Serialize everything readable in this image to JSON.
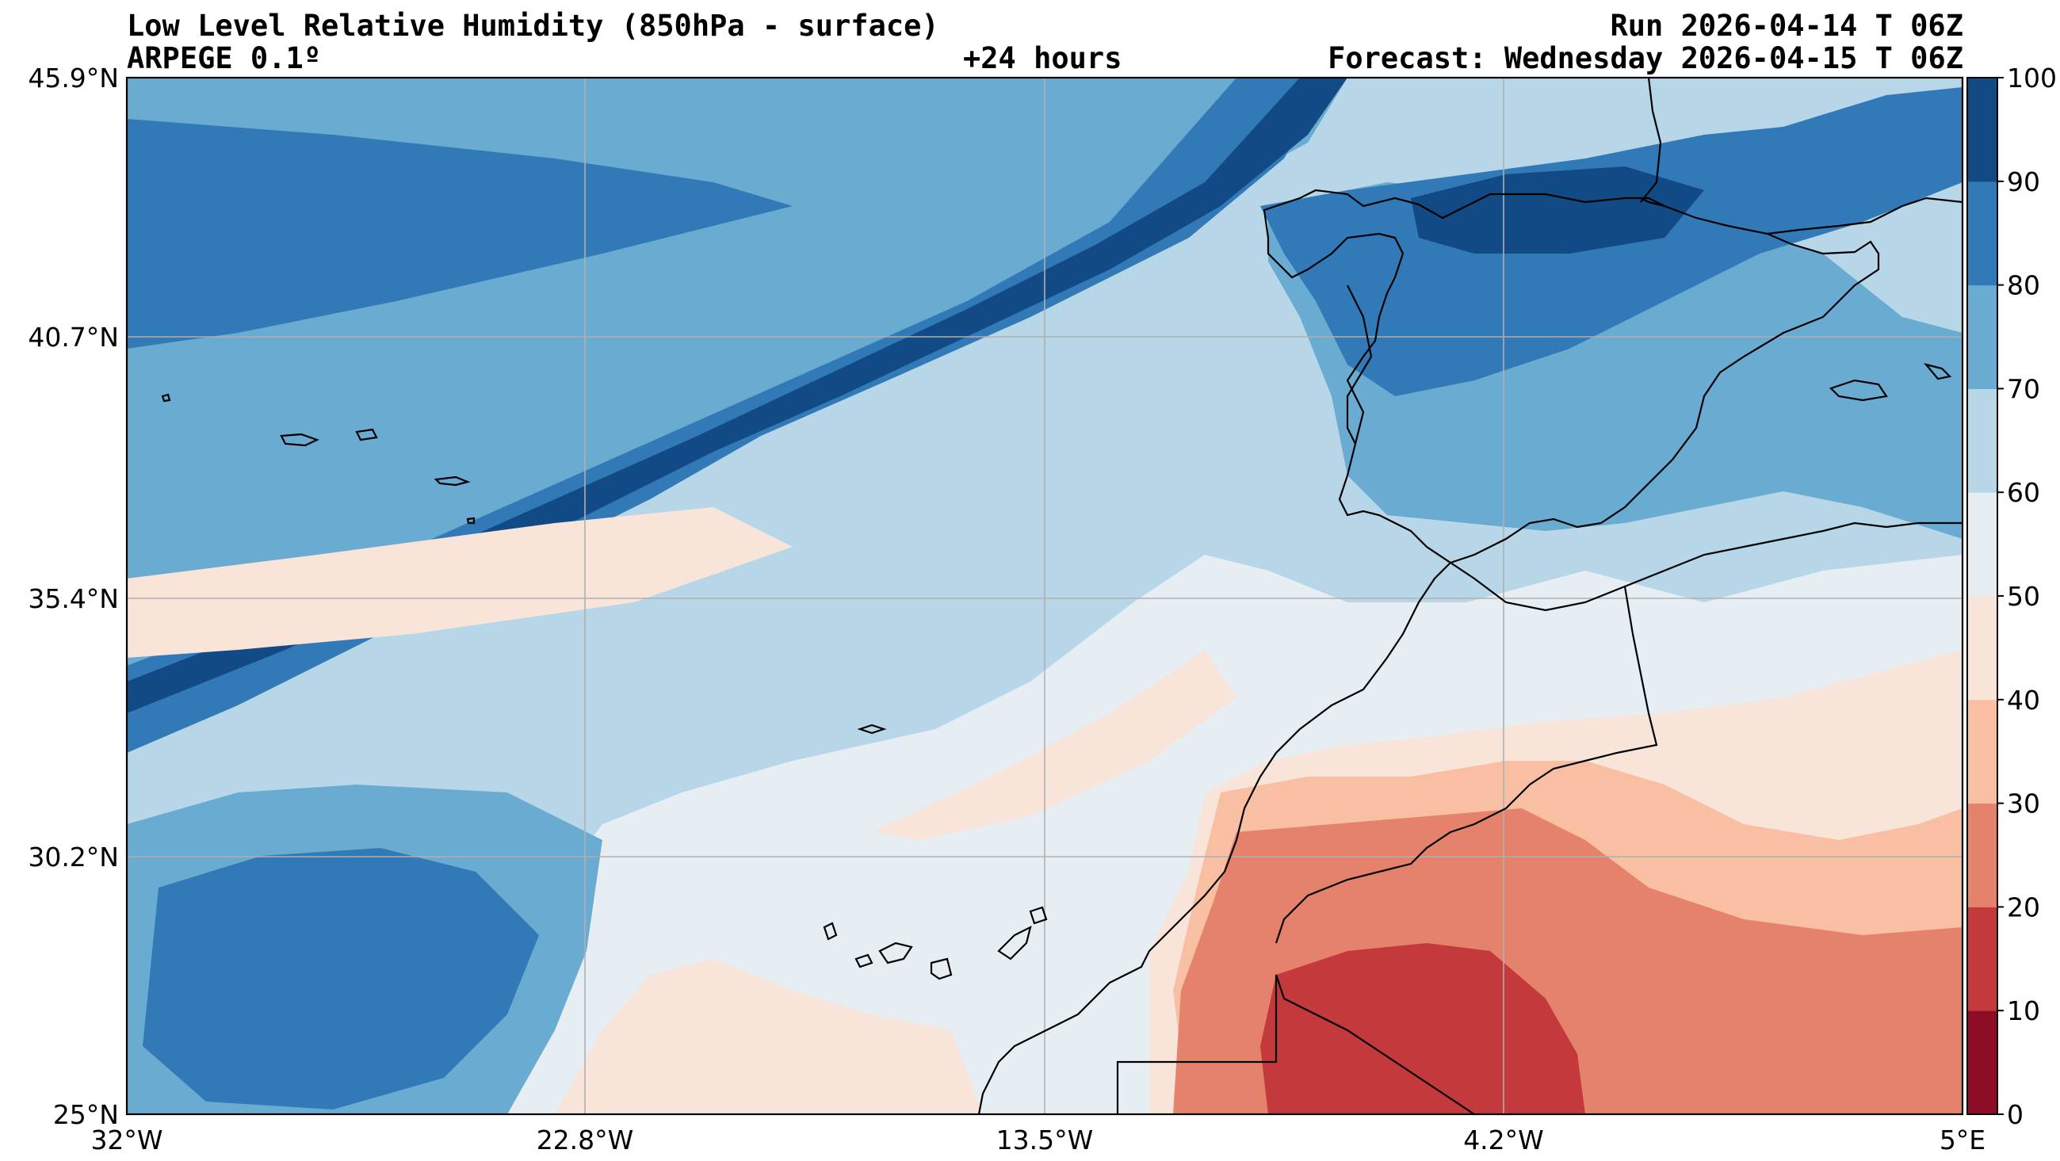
{
  "header": {
    "title_line1": "Low Level Relative Humidity (850hPa - surface)",
    "title_line2": "ARPEGE 0.1º",
    "lead_time": "+24 hours",
    "run": "Run 2026-04-14 T 06Z",
    "forecast": "Forecast: Wednesday 2026-04-15 T 06Z"
  },
  "map": {
    "lon_ticks": [
      "32°W",
      "22.8°W",
      "13.5°W",
      "4.2°W",
      "5°E"
    ],
    "lat_ticks": [
      "45.9°N",
      "40.7°N",
      "35.4°N",
      "30.2°N",
      "25°N"
    ],
    "grid": true
  },
  "colorbar": {
    "ticks": [
      "0",
      "10",
      "20",
      "30",
      "40",
      "50",
      "60",
      "70",
      "80",
      "90",
      "100"
    ],
    "colors": [
      "#8c0d25",
      "#c4393b",
      "#e4826b",
      "#f8bfa3",
      "#f9e4d9",
      "#e6eef4",
      "#b7d6e8",
      "#6aabd2",
      "#3179b7",
      "#114a84"
    ]
  }
}
